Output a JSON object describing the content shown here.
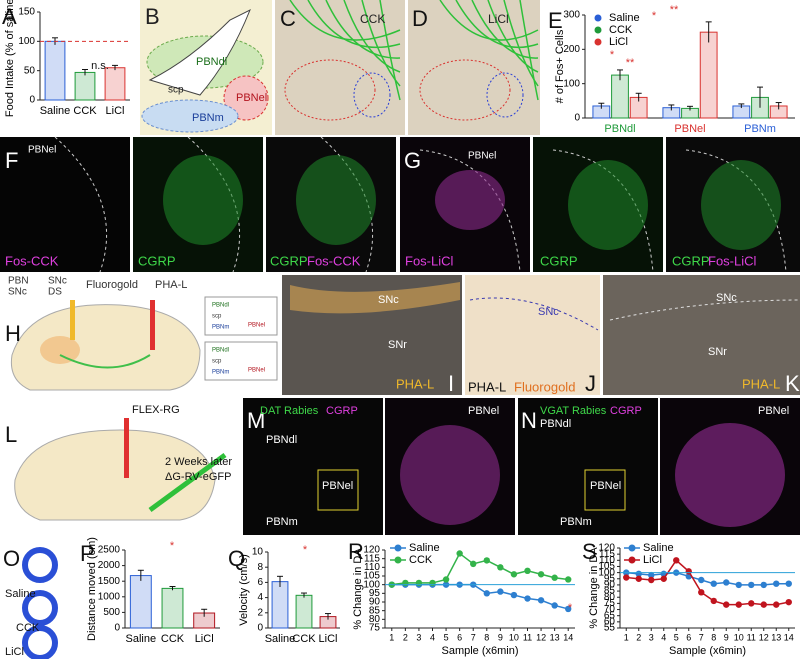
{
  "chart_data": [
    {
      "type": "bar",
      "label": "A",
      "ylabel": "Food Intake (% of saline)",
      "categories": [
        "Saline",
        "CCK",
        "LiCl"
      ],
      "values": [
        100,
        47,
        55
      ],
      "errors": [
        6,
        5,
        4
      ],
      "colors": [
        "#2a5fd6",
        "#1f9a3a",
        "#d9322f"
      ],
      "ylim": [
        0,
        150
      ],
      "yticks": [
        0,
        50,
        100,
        150
      ],
      "reference_line": 100,
      "annotations": [
        "n.s."
      ]
    },
    {
      "type": "grouped_bar",
      "label": "E",
      "ylabel": "# of Fos+ Cells",
      "categories": [
        "PBNdl",
        "PBNel",
        "PBNm"
      ],
      "category_colors": [
        "#1f9a3a",
        "#d9322f",
        "#2a5fd6"
      ],
      "series": [
        {
          "name": "Saline",
          "color": "#2a5fd6",
          "values": [
            35,
            30,
            35
          ],
          "errors": [
            8,
            8,
            6
          ]
        },
        {
          "name": "CCK",
          "color": "#1f9a3a",
          "values": [
            125,
            28,
            60
          ],
          "errors": [
            15,
            6,
            30
          ]
        },
        {
          "name": "LiCl",
          "color": "#d9322f",
          "values": [
            60,
            250,
            35
          ],
          "errors": [
            12,
            30,
            10
          ]
        }
      ],
      "ylim": [
        0,
        300
      ],
      "yticks": [
        0,
        100,
        200,
        300
      ],
      "annotations": [
        "*",
        "**",
        "*",
        "**"
      ]
    },
    {
      "type": "bar",
      "label": "P",
      "ylabel": "Distance moved (cm)",
      "categories": [
        "Saline",
        "CCK",
        "LiCl"
      ],
      "values": [
        1680,
        1270,
        480
      ],
      "errors": [
        170,
        60,
        120
      ],
      "colors": [
        "#2a5fd6",
        "#1f9a3a",
        "#b0141e"
      ],
      "ylim": [
        0,
        2500
      ],
      "yticks": [
        0,
        500,
        1000,
        1500,
        2000,
        2500
      ],
      "annotations": [
        "*"
      ]
    },
    {
      "type": "bar",
      "label": "Q",
      "ylabel": "Velocity (cm/s)",
      "categories": [
        "Saline",
        "CCK",
        "LiCl"
      ],
      "values": [
        6.1,
        4.3,
        1.5
      ],
      "errors": [
        0.7,
        0.3,
        0.4
      ],
      "colors": [
        "#2a5fd6",
        "#1f9a3a",
        "#b0141e"
      ],
      "ylim": [
        0,
        10
      ],
      "yticks": [
        0,
        2,
        4,
        6,
        8,
        10
      ],
      "annotations": [
        "*"
      ]
    },
    {
      "type": "line",
      "label": "R",
      "ylabel": "% Change in DA",
      "xlabel": "Sample (x6min)",
      "x": [
        1,
        2,
        3,
        4,
        5,
        6,
        7,
        8,
        9,
        10,
        11,
        12,
        13,
        14
      ],
      "series": [
        {
          "name": "Saline",
          "color": "#2d7fd0",
          "values": [
            100,
            100,
            100,
            100,
            100,
            100,
            100,
            95,
            96,
            94,
            92,
            91,
            88,
            86
          ]
        },
        {
          "name": "CCK",
          "color": "#33b34a",
          "values": [
            100,
            101,
            101,
            101,
            103,
            118,
            112,
            114,
            110,
            106,
            108,
            106,
            104,
            103
          ]
        }
      ],
      "xlim": [
        0.5,
        14.5
      ],
      "xticks": [
        1,
        2,
        3,
        4,
        5,
        6,
        7,
        8,
        9,
        10,
        11,
        12,
        13,
        14
      ],
      "ylim": [
        75,
        120
      ],
      "yticks": [
        75,
        80,
        85,
        90,
        95,
        100,
        105,
        110,
        115,
        120
      ],
      "reference_line": 100,
      "annotations": [
        "*"
      ]
    },
    {
      "type": "line",
      "label": "S",
      "ylabel": "% Change in DA",
      "xlabel": "Sample (x6min)",
      "x": [
        1,
        2,
        3,
        4,
        5,
        6,
        7,
        8,
        9,
        10,
        11,
        12,
        13,
        14
      ],
      "series": [
        {
          "name": "Saline",
          "color": "#2d7fd0",
          "values": [
            100,
            99,
            98,
            99,
            100,
            97,
            94,
            91,
            92,
            90,
            90,
            90,
            91,
            91
          ]
        },
        {
          "name": "LiCl",
          "color": "#c0141e",
          "values": [
            96,
            95,
            94,
            95,
            110,
            101,
            84,
            77,
            74,
            74,
            75,
            74,
            74,
            76
          ]
        }
      ],
      "xlim": [
        0.5,
        14.5
      ],
      "xticks": [
        1,
        2,
        3,
        4,
        5,
        6,
        7,
        8,
        9,
        10,
        11,
        12,
        13,
        14
      ],
      "ylim": [
        55,
        120
      ],
      "yticks": [
        55,
        60,
        65,
        70,
        75,
        80,
        85,
        90,
        95,
        100,
        105,
        110,
        115,
        120
      ],
      "reference_line": 100,
      "annotations": []
    }
  ],
  "image_panels": [
    {
      "letter": "B",
      "texts": [
        "PBNdl",
        "PBNel",
        "scp",
        "PBNm"
      ]
    },
    {
      "letter": "C",
      "texts": [
        "CCK"
      ]
    },
    {
      "letter": "D",
      "texts": [
        "LiCl"
      ]
    },
    {
      "letter": "F",
      "texts": [
        "PBNel",
        "Fos-CCK",
        "CGRP",
        "CGRP",
        "Fos-CCK"
      ]
    },
    {
      "letter": "G",
      "texts": [
        "PBNel",
        "Fos-LiCl",
        "CGRP",
        "CGRP",
        "Fos-LiCl"
      ]
    },
    {
      "letter": "H",
      "texts": [
        "PBN",
        "SNc",
        "SNc",
        "DS",
        "Fluorogold",
        "PHA-L",
        "PBNdl",
        "scp",
        "PBNm",
        "PBNel",
        "PBNdl",
        "scp",
        "PBNm",
        "PBNel"
      ]
    },
    {
      "letter": "I",
      "texts": [
        "SNc",
        "SNr",
        "PHA-L"
      ]
    },
    {
      "letter": "J",
      "texts": [
        "SNc",
        "PHA-L",
        "Fluorogold"
      ]
    },
    {
      "letter": "K",
      "texts": [
        "SNc",
        "SNr",
        "PHA-L"
      ]
    },
    {
      "letter": "L",
      "texts": [
        "FLEX-RG",
        "2 Weeks later",
        "ΔG-RV-eGFP"
      ]
    },
    {
      "letter": "M",
      "texts": [
        "DAT Rabies",
        "CGRP",
        "PBNdl",
        "PBNel",
        "PBNm",
        "PBNel"
      ]
    },
    {
      "letter": "N",
      "texts": [
        "VGAT Rabies",
        "CGRP",
        "PBNdl",
        "PBNel",
        "PBNm",
        "PBNel"
      ]
    },
    {
      "letter": "O",
      "texts": [
        "Saline",
        "CCK",
        "LiCl"
      ]
    }
  ]
}
